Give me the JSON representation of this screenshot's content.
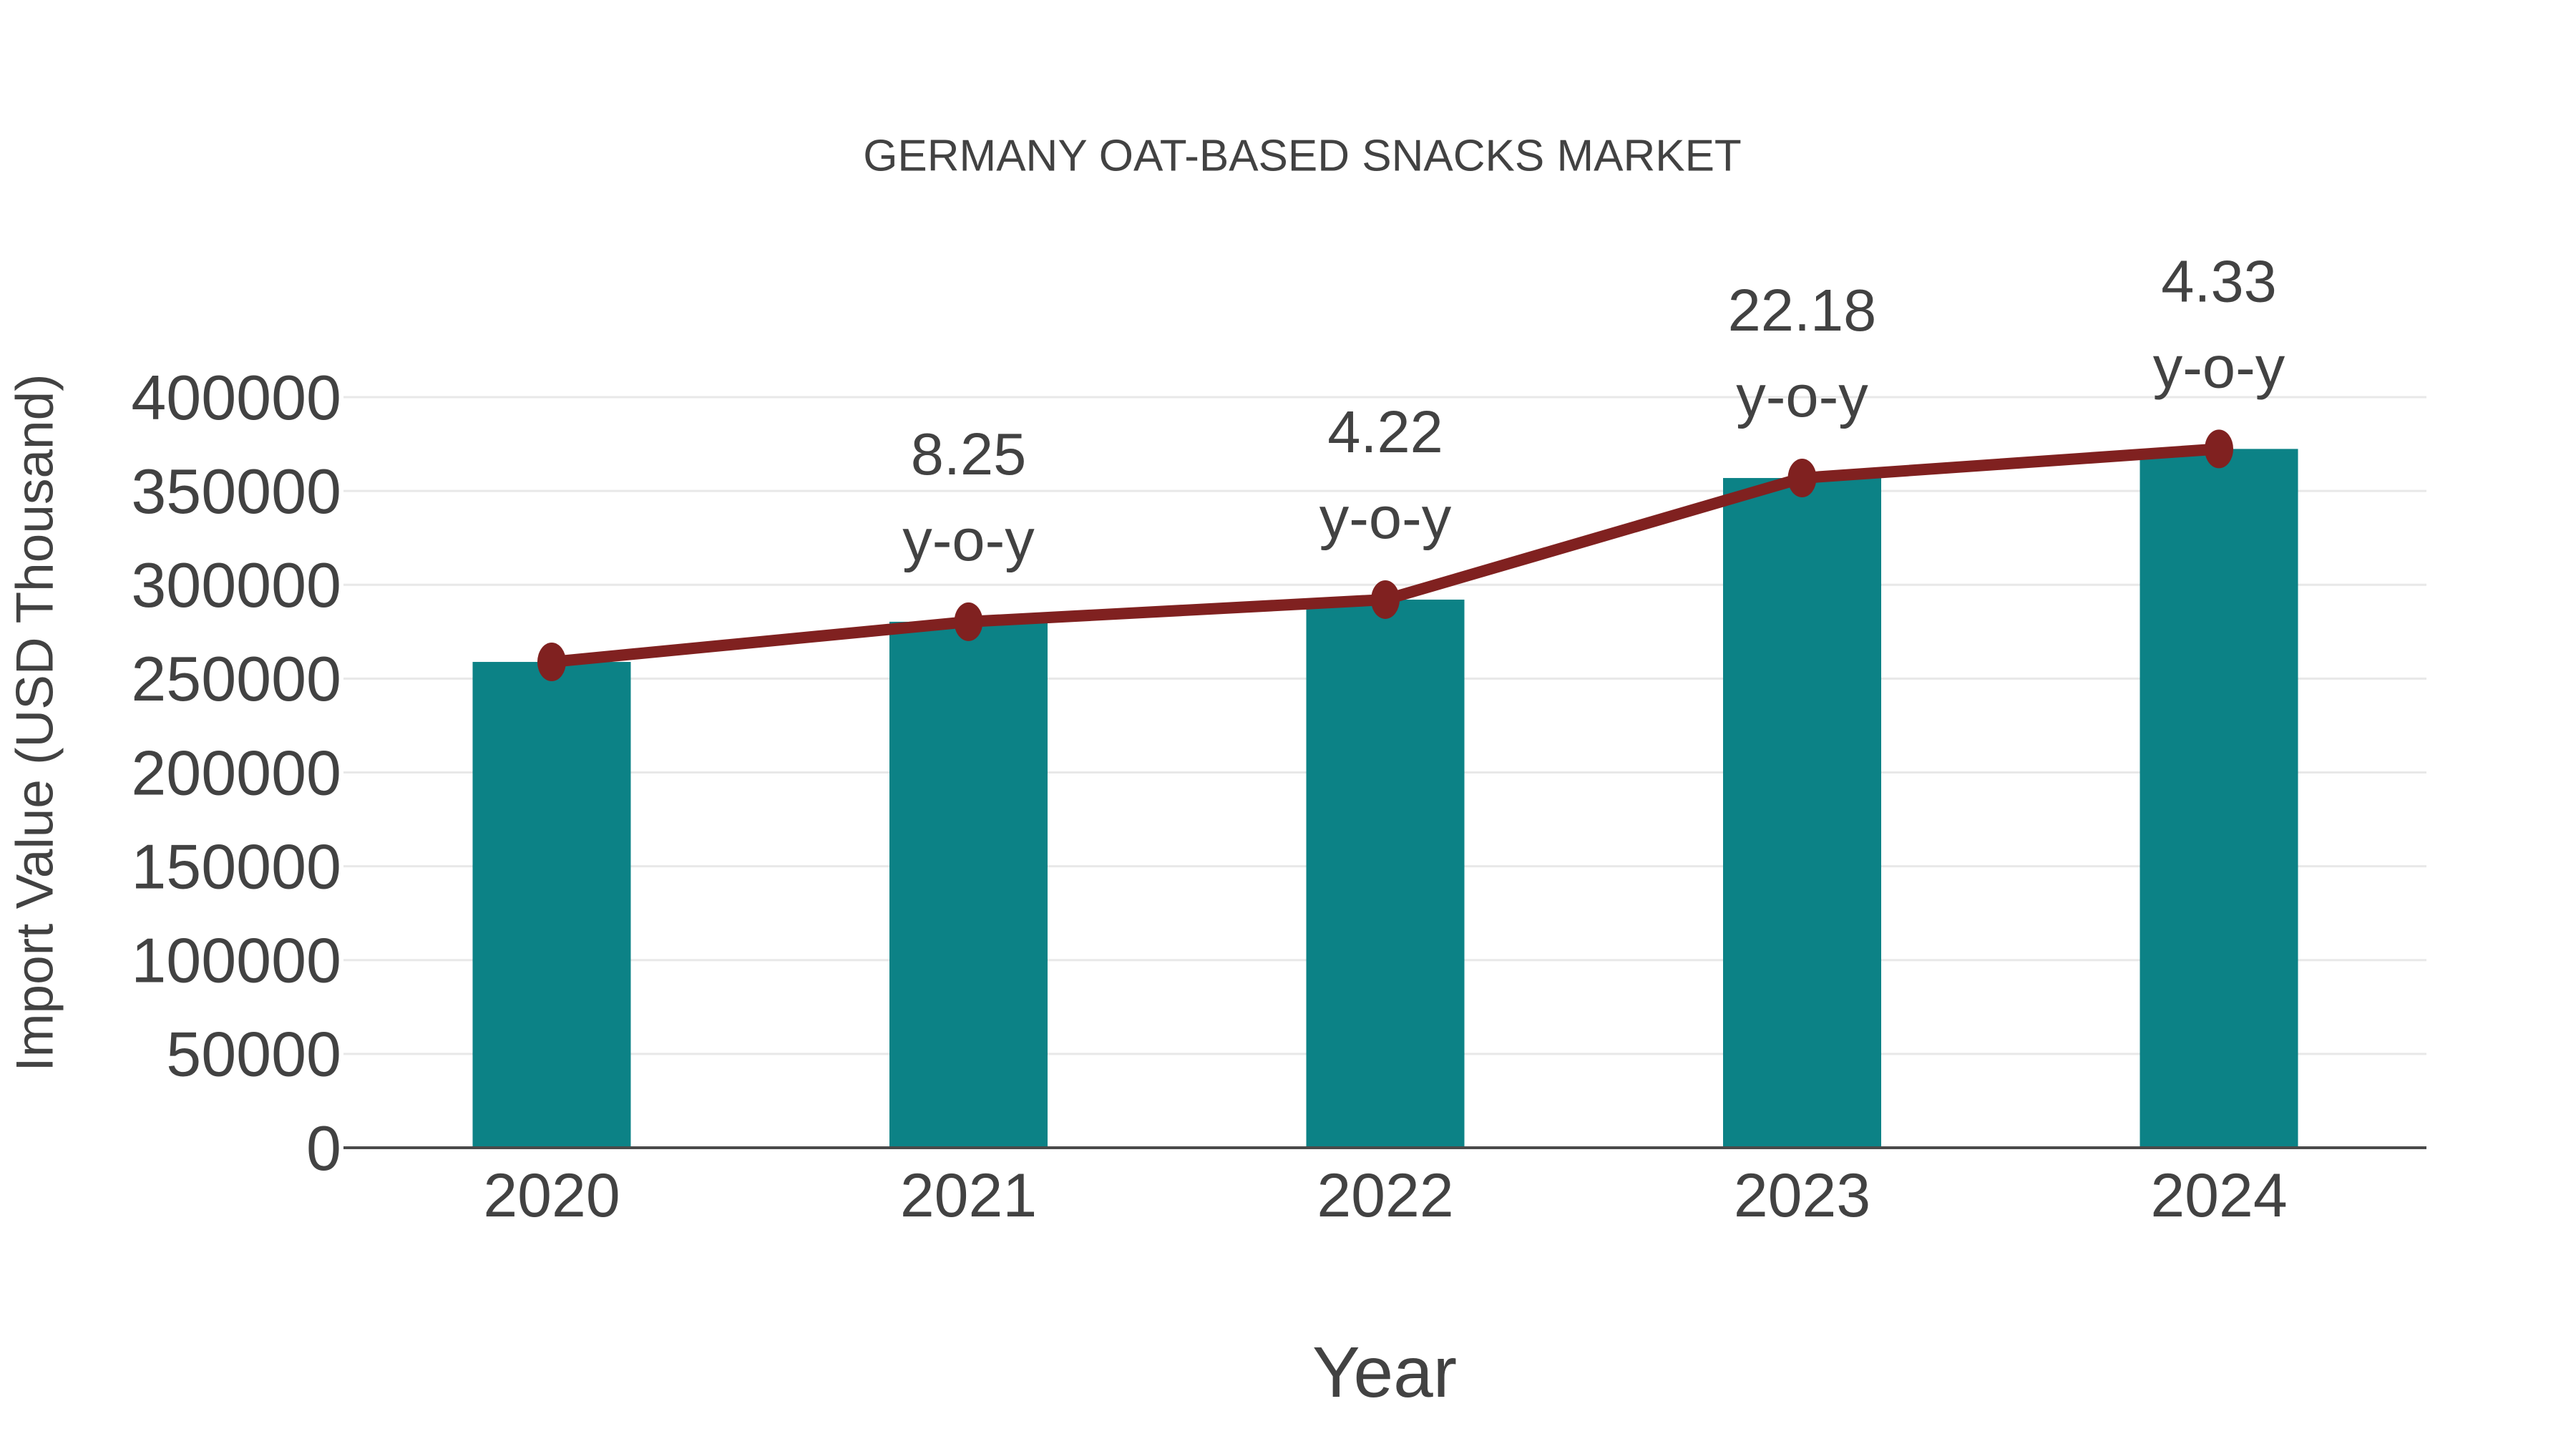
{
  "colors": {
    "background": "#ffffff",
    "bar": "#0c8286",
    "line": "#802120",
    "text": "#424242",
    "grid": "#e8e8e8",
    "axis": "#4a4a4a"
  },
  "chart_data": {
    "type": "combo-bar-line",
    "title": "GERMANY OAT-BASED SNACKS MARKET",
    "xlabel": "Year",
    "ylabel": "Import Value (USD Thousand)",
    "categories": [
      "2020",
      "2021",
      "2022",
      "2023",
      "2024"
    ],
    "series": [
      {
        "name": "Import Value (USD Thousand)",
        "type": "bar",
        "color": "#0c8286",
        "values": [
          258900,
          280300,
          292100,
          356900,
          372400
        ]
      },
      {
        "name": "y-o-y growth (%)",
        "type": "line",
        "color": "#802120",
        "values": [
          null,
          8.25,
          4.22,
          22.18,
          4.33
        ],
        "markers_at": "bar_tops"
      }
    ],
    "annotations": [
      {
        "category": "2021",
        "line1": "8.25",
        "line2": "y-o-y"
      },
      {
        "category": "2022",
        "line1": "4.22",
        "line2": "y-o-y"
      },
      {
        "category": "2023",
        "line1": "22.18",
        "line2": "y-o-y"
      },
      {
        "category": "2024",
        "line1": "4.33",
        "line2": "y-o-y"
      }
    ],
    "ylim": [
      0,
      400000
    ],
    "y_tick_step": 50000,
    "y_ticks": [
      "0",
      "50000",
      "100000",
      "150000",
      "200000",
      "250000",
      "300000",
      "350000",
      "400000"
    ],
    "x_ticks": [
      "2020",
      "2021",
      "2022",
      "2023",
      "2024"
    ],
    "grid": "horizontal",
    "legend": "none"
  }
}
